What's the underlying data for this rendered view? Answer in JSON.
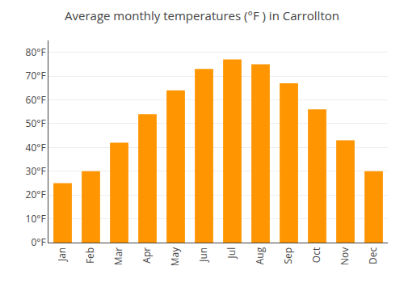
{
  "chart_data": {
    "type": "bar",
    "title": "Average monthly temperatures (°F ) in Carrollton",
    "categories": [
      "Jan",
      "Feb",
      "Mar",
      "Apr",
      "May",
      "Jun",
      "Jul",
      "Aug",
      "Sep",
      "Oct",
      "Nov",
      "Dec"
    ],
    "values": [
      25,
      30,
      42,
      54,
      64,
      73,
      77,
      75,
      67,
      56,
      43,
      30
    ],
    "color": "#FF9500",
    "ylim": [
      0,
      85
    ],
    "yticks": [
      {
        "value": 0,
        "label": "0°F"
      },
      {
        "value": 10,
        "label": "10°F"
      },
      {
        "value": 20,
        "label": "20°F"
      },
      {
        "value": 30,
        "label": "30°F"
      },
      {
        "value": 40,
        "label": "40°F"
      },
      {
        "value": 50,
        "label": "50°F"
      },
      {
        "value": 60,
        "label": "60°F"
      },
      {
        "value": 70,
        "label": "70°F"
      },
      {
        "value": 80,
        "label": "80°F"
      }
    ],
    "grid": true
  }
}
